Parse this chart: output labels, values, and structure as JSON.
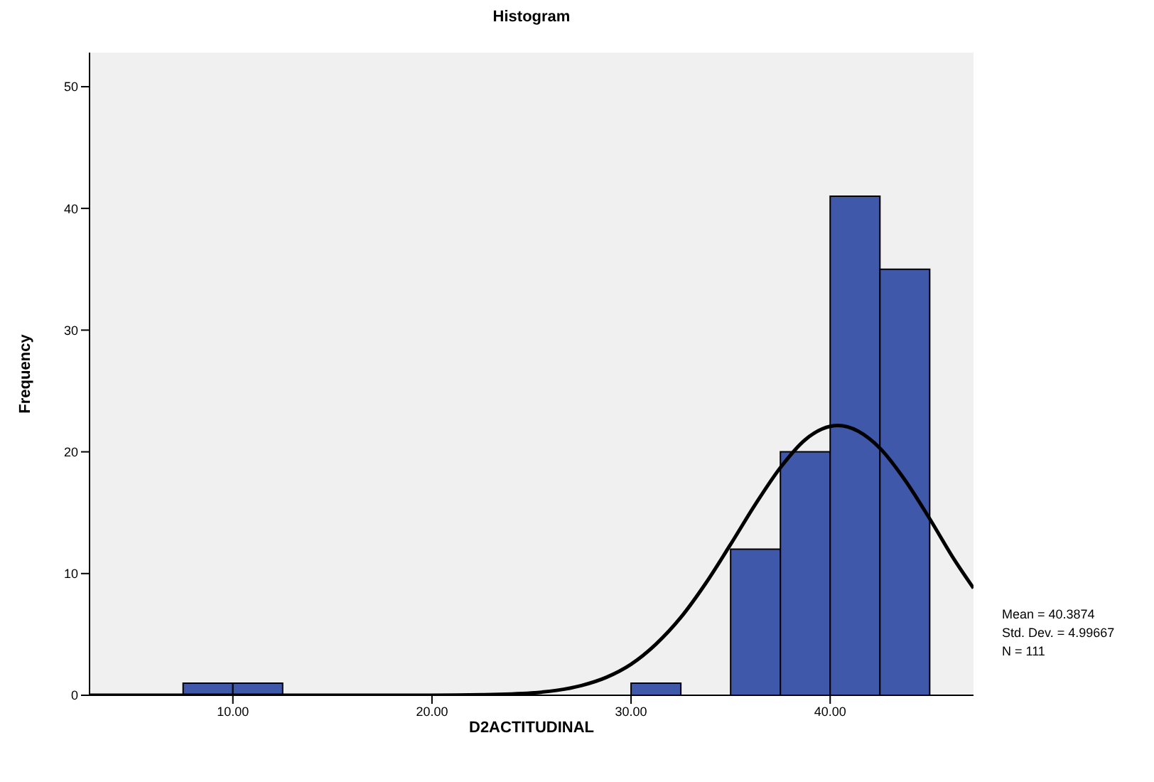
{
  "chart_data": {
    "type": "histogram",
    "title": "Histogram",
    "xlabel": "D2ACTITUDINAL",
    "ylabel": "Frequency",
    "bins": [
      7.5,
      10,
      12.5,
      15,
      17.5,
      20,
      22.5,
      25,
      27.5,
      30,
      32.5,
      35,
      37.5,
      40,
      42.5,
      45
    ],
    "values": [
      1,
      1,
      0,
      0,
      0,
      0,
      0,
      0,
      0,
      1,
      0,
      12,
      20,
      41,
      35
    ],
    "color": "#3f58aa",
    "series": [
      {
        "type": "line",
        "color": "#000000",
        "x": [
          2.8,
          10,
          15,
          20,
          22.5,
          25,
          26.25,
          27.5,
          28.75,
          30,
          31.25,
          32.5,
          33.75,
          35,
          36.25,
          37.5,
          38.75,
          40.39,
          42.5,
          43.75,
          45,
          46.25,
          47.2
        ],
        "values": [
          0,
          0,
          0,
          0,
          0.04,
          0.19,
          0.4,
          0.8,
          1.47,
          2.55,
          4.2,
          6.4,
          9.2,
          12.4,
          15.7,
          18.7,
          21.0,
          22.16,
          20.3,
          17.7,
          14.5,
          11.1,
          8.8
        ]
      }
    ],
    "xlim": [
      2.8,
      47.2
    ],
    "xticks": [
      {
        "value": 10,
        "label": "10.00"
      },
      {
        "value": 20,
        "label": "20.00"
      },
      {
        "value": 30,
        "label": "30.00"
      },
      {
        "value": 40,
        "label": "40.00"
      }
    ],
    "ylim": [
      0,
      52.8
    ],
    "yticks": [
      0,
      10,
      20,
      30,
      40,
      50
    ],
    "annotations": [
      "Mean = 40.3874",
      "Std. Dev. = 4.99667",
      "N = 111"
    ]
  }
}
